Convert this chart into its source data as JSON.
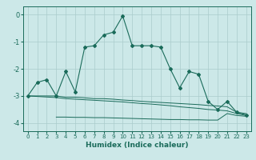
{
  "xlabel": "Humidex (Indice chaleur)",
  "bg_color": "#cce8e8",
  "line_color": "#1a6b5a",
  "grid_color": "#aacccc",
  "xlim": [
    -0.5,
    23.5
  ],
  "ylim": [
    -4.3,
    0.3
  ],
  "yticks": [
    0,
    -1,
    -2,
    -3,
    -4
  ],
  "xticks": [
    0,
    1,
    2,
    3,
    4,
    5,
    6,
    7,
    8,
    9,
    10,
    11,
    12,
    13,
    14,
    15,
    16,
    17,
    18,
    19,
    20,
    21,
    22,
    23
  ],
  "main_line": {
    "x": [
      0,
      1,
      2,
      3,
      4,
      5,
      6,
      7,
      8,
      9,
      10,
      11,
      12,
      13,
      14,
      15,
      16,
      17,
      18,
      19,
      20,
      21,
      22,
      23
    ],
    "y": [
      -3.0,
      -2.5,
      -2.4,
      -3.0,
      -2.1,
      -2.85,
      -1.2,
      -1.15,
      -0.75,
      -0.65,
      -0.05,
      -1.15,
      -1.15,
      -1.15,
      -1.2,
      -2.0,
      -2.7,
      -2.1,
      -2.2,
      -3.2,
      -3.5,
      -3.2,
      -3.6,
      -3.7
    ]
  },
  "flat_lines": [
    {
      "x": [
        0,
        1,
        2,
        3,
        4,
        5,
        6,
        7,
        8,
        9,
        10,
        11,
        12,
        13,
        14,
        15,
        16,
        17,
        18,
        19,
        20,
        21,
        22,
        23
      ],
      "y": [
        -3.0,
        -3.0,
        -3.0,
        -3.0,
        -3.05,
        -3.05,
        -3.07,
        -3.1,
        -3.1,
        -3.12,
        -3.15,
        -3.17,
        -3.2,
        -3.22,
        -3.24,
        -3.26,
        -3.28,
        -3.3,
        -3.32,
        -3.35,
        -3.37,
        -3.4,
        -3.6,
        -3.65
      ]
    },
    {
      "x": [
        0,
        1,
        2,
        3,
        4,
        5,
        6,
        7,
        8,
        9,
        10,
        11,
        12,
        13,
        14,
        15,
        16,
        17,
        18,
        19,
        20,
        21,
        22,
        23
      ],
      "y": [
        -3.0,
        -3.02,
        -3.04,
        -3.06,
        -3.1,
        -3.12,
        -3.14,
        -3.16,
        -3.18,
        -3.2,
        -3.22,
        -3.25,
        -3.28,
        -3.3,
        -3.33,
        -3.36,
        -3.4,
        -3.43,
        -3.46,
        -3.5,
        -3.52,
        -3.55,
        -3.65,
        -3.72
      ]
    },
    {
      "x": [
        3,
        4,
        5,
        6,
        7,
        8,
        9,
        10,
        11,
        12,
        13,
        14,
        15,
        16,
        17,
        18,
        19,
        20,
        21,
        22,
        23
      ],
      "y": [
        -3.78,
        -3.78,
        -3.79,
        -3.79,
        -3.8,
        -3.8,
        -3.81,
        -3.82,
        -3.83,
        -3.84,
        -3.85,
        -3.86,
        -3.87,
        -3.87,
        -3.88,
        -3.88,
        -3.89,
        -3.89,
        -3.65,
        -3.72,
        -3.75
      ]
    }
  ]
}
